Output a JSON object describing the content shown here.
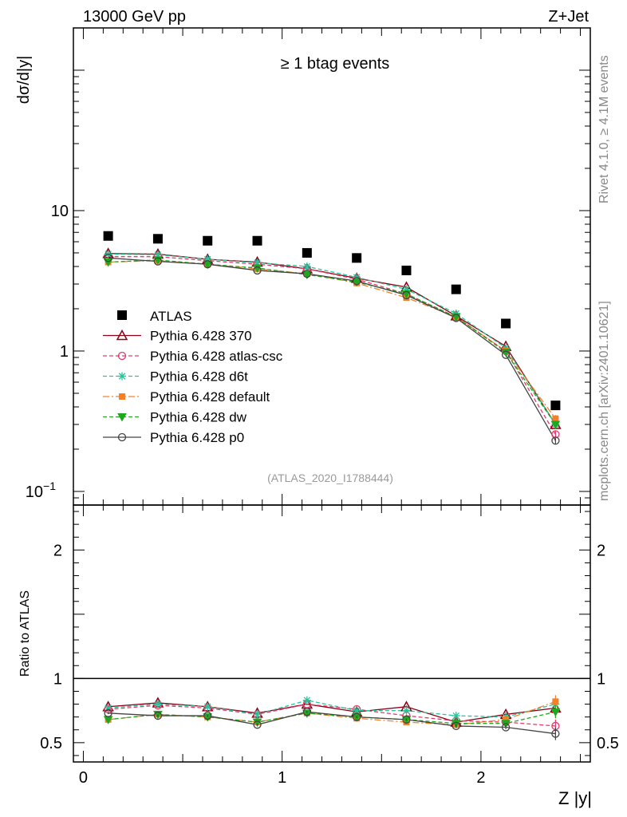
{
  "header": {
    "left": "13000 GeV pp",
    "right": "Z+Jet"
  },
  "side_text": {
    "rivet": "Rivet 4.1.0, ≥ 4.1M events",
    "mcplots": "mcplots.cern.ch [arXiv:2401.10621]"
  },
  "chart_data": [
    {
      "id": "main",
      "type": "scatter",
      "title": "≥ 1 btag events",
      "analysis_label": "(ATLAS_2020_I1788444)",
      "ylabel": "dσ/d|y|",
      "yscale": "log",
      "ylim": [
        0.08,
        200
      ],
      "ytick_labels": [
        {
          "value": 0.1,
          "label": "10",
          "sup": "−1"
        },
        {
          "value": 1,
          "label": "1",
          "sup": ""
        },
        {
          "value": 10,
          "label": "10",
          "sup": ""
        }
      ],
      "xlim": [
        -0.05,
        2.55
      ],
      "x": [
        0.125,
        0.375,
        0.625,
        0.875,
        1.125,
        1.375,
        1.625,
        1.875,
        2.125,
        2.375
      ],
      "data": {
        "name": "ATLAS",
        "values": [
          6.6,
          6.3,
          6.1,
          6.1,
          5.0,
          4.6,
          3.75,
          2.75,
          1.57,
          0.41
        ]
      },
      "series": [
        {
          "name": "Pythia 6.428 370",
          "color": "#8b0015",
          "dash": "",
          "marker": "triangle-open",
          "values": [
            4.95,
            4.9,
            4.5,
            4.3,
            3.85,
            3.3,
            2.85,
            1.78,
            1.08,
            0.3
          ]
        },
        {
          "name": "Pythia 6.428 atlas-csc",
          "color": "#e8386a",
          "dash": "5,3",
          "marker": "circle-open",
          "values": [
            4.7,
            4.7,
            4.4,
            4.15,
            3.85,
            3.25,
            2.55,
            1.75,
            1.0,
            0.255
          ]
        },
        {
          "name": "Pythia 6.428 d6t",
          "color": "#20c79a",
          "dash": "5,3",
          "marker": "star",
          "values": [
            4.9,
            4.85,
            4.5,
            4.25,
            4.0,
            3.35,
            2.75,
            1.85,
            1.05,
            0.3
          ]
        },
        {
          "name": "Pythia 6.428 default",
          "color": "#f5802a",
          "dash": "8,3,2,3",
          "marker": "square",
          "values": [
            4.3,
            4.4,
            4.15,
            3.85,
            3.55,
            3.05,
            2.4,
            1.75,
            1.0,
            0.33
          ]
        },
        {
          "name": "Pythia 6.428 dw",
          "color": "#1ea81e",
          "dash": "5,3",
          "marker": "triangle-down",
          "values": [
            4.3,
            4.45,
            4.15,
            3.9,
            3.5,
            3.1,
            2.55,
            1.75,
            0.98,
            0.3
          ]
        },
        {
          "name": "Pythia 6.428 p0",
          "color": "#444444",
          "dash": "",
          "marker": "circle-open",
          "values": [
            4.6,
            4.35,
            4.15,
            3.75,
            3.55,
            3.15,
            2.5,
            1.72,
            0.94,
            0.23
          ]
        }
      ],
      "legend_position": "center-left"
    },
    {
      "id": "ratio",
      "type": "line",
      "ylabel": "Ratio to ATLAS",
      "ylim": [
        0.35,
        2.35
      ],
      "ytick_labels": [
        {
          "value": 0.5,
          "label": "0.5"
        },
        {
          "value": 1,
          "label": "1"
        },
        {
          "value": 2,
          "label": "2"
        }
      ],
      "xlim": [
        -0.05,
        2.55
      ],
      "xlabel": "Z |y|",
      "xtick_labels": [
        {
          "value": 0,
          "label": "0"
        },
        {
          "value": 1,
          "label": "1"
        },
        {
          "value": 2,
          "label": "2"
        }
      ],
      "x": [
        0.125,
        0.375,
        0.625,
        0.875,
        1.125,
        1.375,
        1.625,
        1.875,
        2.125,
        2.375
      ],
      "series": [
        {
          "name": "Pythia 6.428 370",
          "values": [
            0.78,
            0.81,
            0.78,
            0.73,
            0.8,
            0.74,
            0.78,
            0.66,
            0.72,
            0.77
          ]
        },
        {
          "name": "Pythia 6.428 atlas-csc",
          "values": [
            0.76,
            0.79,
            0.77,
            0.72,
            0.8,
            0.76,
            0.71,
            0.67,
            0.66,
            0.63
          ]
        },
        {
          "name": "Pythia 6.428 d6t",
          "values": [
            0.77,
            0.8,
            0.78,
            0.72,
            0.83,
            0.75,
            0.75,
            0.71,
            0.7,
            0.8
          ]
        },
        {
          "name": "Pythia 6.428 default",
          "values": [
            0.68,
            0.72,
            0.7,
            0.66,
            0.73,
            0.69,
            0.66,
            0.64,
            0.68,
            0.82
          ]
        },
        {
          "name": "Pythia 6.428 dw",
          "values": [
            0.68,
            0.72,
            0.7,
            0.66,
            0.73,
            0.7,
            0.68,
            0.65,
            0.65,
            0.74
          ]
        },
        {
          "name": "Pythia 6.428 p0",
          "values": [
            0.73,
            0.71,
            0.71,
            0.64,
            0.74,
            0.7,
            0.68,
            0.63,
            0.62,
            0.57
          ]
        }
      ]
    }
  ]
}
